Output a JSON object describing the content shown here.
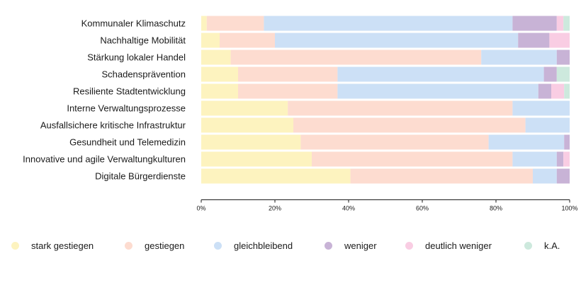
{
  "chart_data": {
    "type": "bar",
    "orientation": "horizontal",
    "stacked": true,
    "normalized": true,
    "categories": [
      "Kommunaler Klimaschutz",
      "Nachhaltige Mobilität",
      "Stärkung lokaler Handel",
      "Schadensprävention",
      "Resiliente Stadtentwicklung",
      "Interne Verwaltungsprozesse",
      "Ausfallsichere kritische Infrastruktur",
      "Gesundheit und Telemedizin",
      "Innovative und agile Verwaltungkulturen",
      "Digitale Bürgerdienste"
    ],
    "series": [
      {
        "name": "stark gestiegen",
        "color": "#fdf3bf",
        "values": [
          1.5,
          5,
          8,
          10,
          10,
          23.5,
          25,
          27,
          30,
          40.5
        ]
      },
      {
        "name": "gestiegen",
        "color": "#fddcd0",
        "values": [
          15.5,
          15,
          68,
          27,
          27,
          61,
          63,
          51,
          54.5,
          49.5
        ]
      },
      {
        "name": "gleichbleibend",
        "color": "#cce0f6",
        "values": [
          67.5,
          66,
          20.5,
          56,
          54.5,
          15.5,
          12,
          20.5,
          12,
          6.5
        ]
      },
      {
        "name": "weniger",
        "color": "#c8b3d6",
        "values": [
          12,
          8.5,
          3.5,
          3.5,
          3.5,
          0,
          0,
          1.5,
          1.8,
          3.5
        ]
      },
      {
        "name": "deutlich weniger",
        "color": "#f9cde3",
        "values": [
          1.8,
          5.5,
          0,
          0,
          3.5,
          0,
          0,
          0,
          1.7,
          0
        ]
      },
      {
        "name": "k.A.",
        "color": "#cde9dd",
        "values": [
          1.7,
          0,
          0,
          3.5,
          1.5,
          0,
          0,
          0,
          0,
          0
        ]
      }
    ],
    "xlim": [
      0,
      100
    ],
    "xticks": [
      "0%",
      "20%",
      "40%",
      "60%",
      "80%",
      "100%"
    ],
    "xlabel": "",
    "ylabel": "",
    "grid": false,
    "legend_position": "bottom"
  }
}
